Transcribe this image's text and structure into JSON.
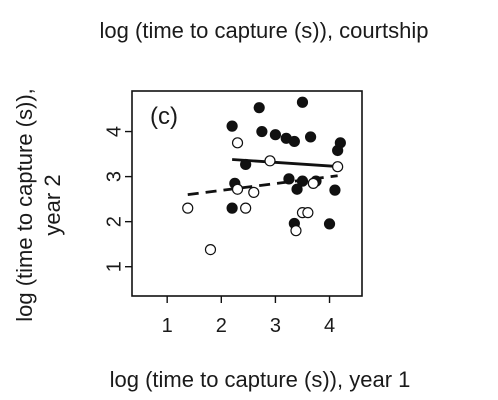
{
  "chart_data": {
    "type": "scatter",
    "title": "log (time to capture (s)), courtship",
    "xlabel": "log (time to capture (s)), year 1",
    "ylabel_lines": [
      "log (time to capture (s)),",
      "year 2"
    ],
    "panel_label": "(c)",
    "xlim": [
      0.35,
      4.6
    ],
    "ylim": [
      0.35,
      4.9
    ],
    "x_ticks": [
      1,
      2,
      3,
      4
    ],
    "y_ticks": [
      1,
      2,
      3,
      4
    ],
    "grid": false,
    "series": [
      {
        "marker": "filled-circle",
        "color": "#111111",
        "points": [
          [
            2.2,
            4.12
          ],
          [
            2.7,
            4.53
          ],
          [
            3.5,
            4.65
          ],
          [
            2.75,
            4.0
          ],
          [
            3.0,
            3.93
          ],
          [
            3.2,
            3.85
          ],
          [
            3.35,
            3.78
          ],
          [
            3.65,
            3.88
          ],
          [
            4.2,
            3.75
          ],
          [
            4.15,
            3.58
          ],
          [
            2.45,
            3.27
          ],
          [
            3.25,
            2.95
          ],
          [
            3.5,
            2.9
          ],
          [
            3.75,
            2.9
          ],
          [
            3.4,
            2.72
          ],
          [
            2.25,
            2.85
          ],
          [
            4.1,
            2.7
          ],
          [
            2.2,
            2.3
          ],
          [
            3.35,
            1.96
          ],
          [
            4.0,
            1.95
          ]
        ],
        "trendline": {
          "style": "solid",
          "x": [
            2.2,
            4.2
          ],
          "y": [
            3.38,
            3.22
          ]
        }
      },
      {
        "marker": "open-circle",
        "color": "#111111",
        "points": [
          [
            2.3,
            3.75
          ],
          [
            2.9,
            3.35
          ],
          [
            4.15,
            3.22
          ],
          [
            3.7,
            2.85
          ],
          [
            2.3,
            2.72
          ],
          [
            2.6,
            2.65
          ],
          [
            1.38,
            2.3
          ],
          [
            2.45,
            2.3
          ],
          [
            3.5,
            2.2
          ],
          [
            3.6,
            2.2
          ],
          [
            3.38,
            1.8
          ],
          [
            1.8,
            1.38
          ]
        ],
        "trendline": {
          "style": "dashed",
          "x": [
            1.38,
            4.15
          ],
          "y": [
            2.6,
            3.02
          ]
        }
      }
    ]
  }
}
